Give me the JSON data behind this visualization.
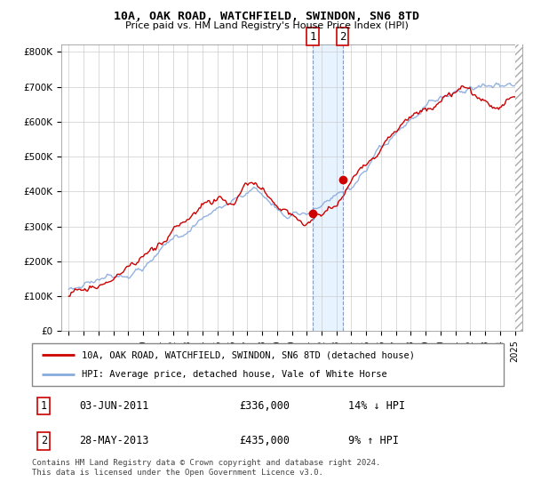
{
  "title": "10A, OAK ROAD, WATCHFIELD, SWINDON, SN6 8TD",
  "subtitle": "Price paid vs. HM Land Registry's House Price Index (HPI)",
  "ylabel_ticks": [
    "£0",
    "£100K",
    "£200K",
    "£300K",
    "£400K",
    "£500K",
    "£600K",
    "£700K",
    "£800K"
  ],
  "ytick_values": [
    0,
    100000,
    200000,
    300000,
    400000,
    500000,
    600000,
    700000,
    800000
  ],
  "ylim": [
    0,
    820000
  ],
  "xlim_start": 1994.5,
  "xlim_end": 2025.5,
  "sale1_x": 2011.42,
  "sale1_y": 336000,
  "sale1_label": "1",
  "sale1_date": "03-JUN-2011",
  "sale1_price": "£336,000",
  "sale1_info": "14% ↓ HPI",
  "sale2_x": 2013.41,
  "sale2_y": 435000,
  "sale2_label": "2",
  "sale2_date": "28-MAY-2013",
  "sale2_price": "£435,000",
  "sale2_info": "9% ↑ HPI",
  "legend_line1": "10A, OAK ROAD, WATCHFIELD, SWINDON, SN6 8TD (detached house)",
  "legend_line2": "HPI: Average price, detached house, Vale of White Horse",
  "footer": "Contains HM Land Registry data © Crown copyright and database right 2024.\nThis data is licensed under the Open Government Licence v3.0.",
  "color_red": "#cc0000",
  "color_blue": "#88aadd",
  "shade_color": "#ddeeff",
  "table_row1": [
    "1",
    "03-JUN-2011",
    "£336,000",
    "14% ↓ HPI"
  ],
  "table_row2": [
    "2",
    "28-MAY-2013",
    "£435,000",
    "9% ↑ HPI"
  ]
}
